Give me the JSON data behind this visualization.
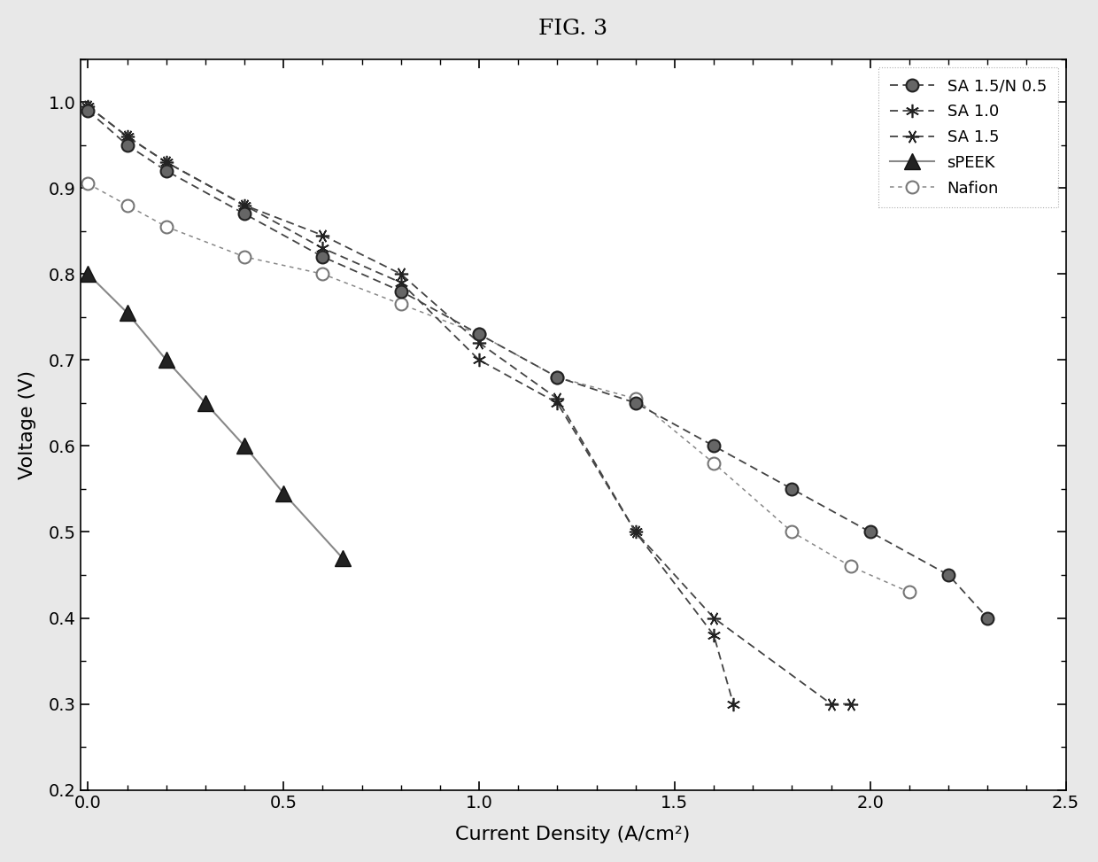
{
  "title": "FIG. 3",
  "xlabel": "Current Density (A/cm²)",
  "ylabel": "Voltage (V)",
  "xlim": [
    -0.02,
    2.5
  ],
  "ylim": [
    0.2,
    1.05
  ],
  "xticks": [
    0.0,
    0.5,
    1.0,
    1.5,
    2.0,
    2.5
  ],
  "yticks": [
    0.2,
    0.3,
    0.4,
    0.5,
    0.6,
    0.7,
    0.8,
    0.9,
    1.0
  ],
  "series": {
    "SA 1.5/N 0.5": {
      "x": [
        0.0,
        0.1,
        0.2,
        0.4,
        0.6,
        0.8,
        1.0,
        1.2,
        1.4,
        1.6,
        1.8,
        2.0,
        2.2,
        2.3
      ],
      "y": [
        0.99,
        0.95,
        0.92,
        0.87,
        0.82,
        0.78,
        0.73,
        0.68,
        0.65,
        0.6,
        0.55,
        0.5,
        0.45,
        0.4
      ]
    },
    "SA 1.0": {
      "x": [
        0.0,
        0.1,
        0.2,
        0.4,
        0.6,
        0.8,
        1.0,
        1.2,
        1.4,
        1.6,
        1.65
      ],
      "y": [
        0.995,
        0.96,
        0.93,
        0.88,
        0.83,
        0.79,
        0.7,
        0.65,
        0.5,
        0.38,
        0.3
      ]
    },
    "SA 1.5": {
      "x": [
        0.0,
        0.1,
        0.2,
        0.4,
        0.6,
        0.8,
        1.0,
        1.2,
        1.4,
        1.6,
        1.9,
        1.95
      ],
      "y": [
        0.995,
        0.96,
        0.93,
        0.88,
        0.845,
        0.8,
        0.72,
        0.655,
        0.5,
        0.4,
        0.3,
        0.3
      ]
    },
    "sPEEK": {
      "x": [
        0.0,
        0.1,
        0.2,
        0.3,
        0.4,
        0.5,
        0.65
      ],
      "y": [
        0.8,
        0.755,
        0.7,
        0.65,
        0.6,
        0.545,
        0.47
      ]
    },
    "Nafion": {
      "x": [
        0.0,
        0.1,
        0.2,
        0.4,
        0.6,
        0.8,
        1.0,
        1.2,
        1.4,
        1.6,
        1.8,
        1.95,
        2.1
      ],
      "y": [
        0.905,
        0.88,
        0.855,
        0.82,
        0.8,
        0.765,
        0.73,
        0.68,
        0.655,
        0.58,
        0.5,
        0.46,
        0.43
      ]
    }
  },
  "bg_color": "#e8e8e8",
  "plot_bg": "#ffffff"
}
